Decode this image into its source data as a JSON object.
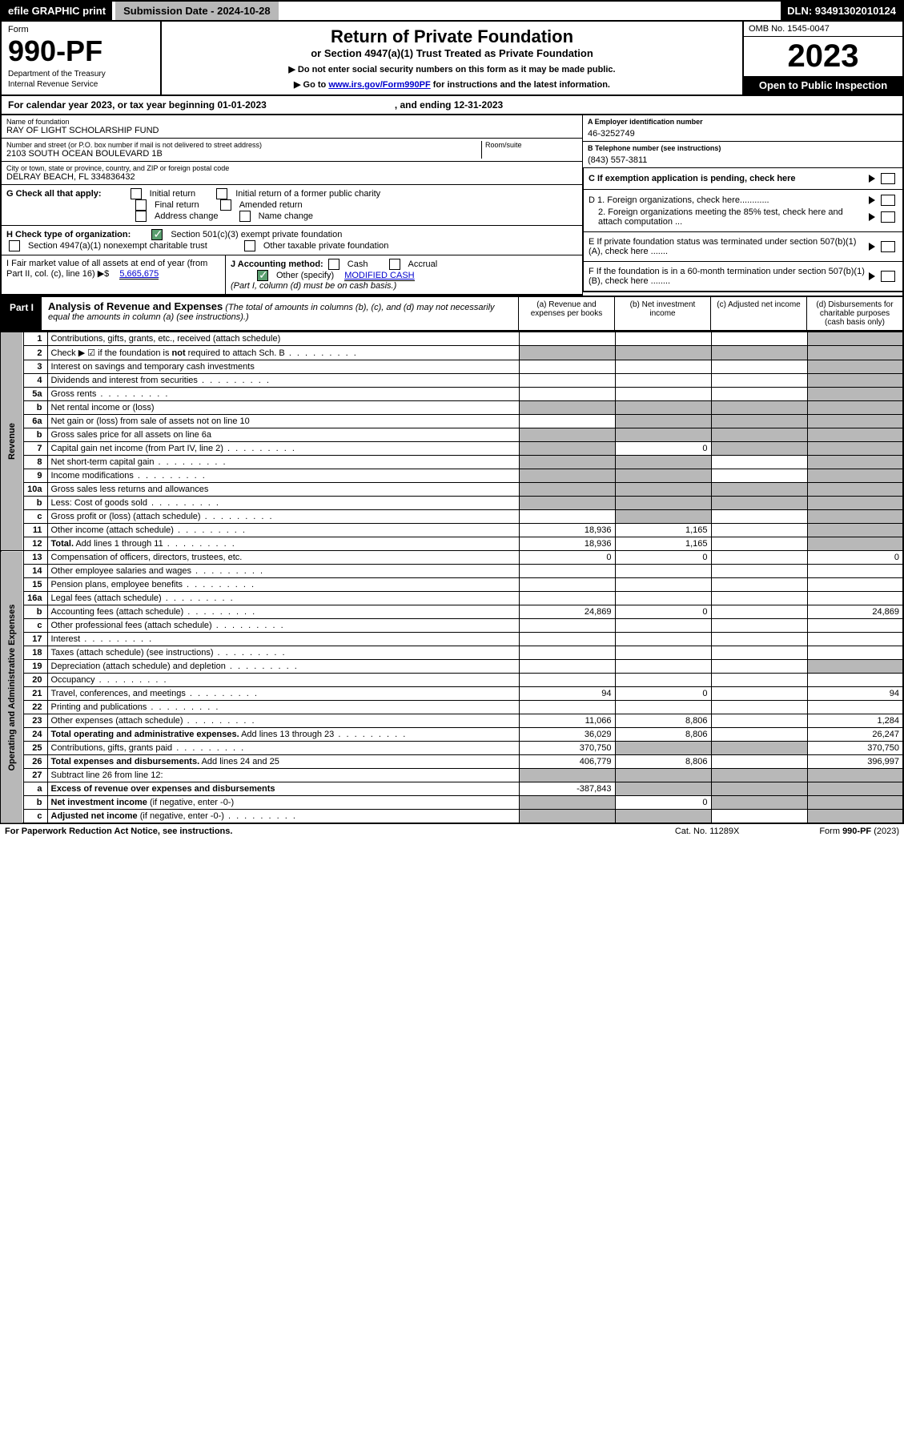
{
  "topbar": {
    "efile": "efile GRAPHIC print",
    "subdate_label": "Submission Date - 2024-10-28",
    "dln": "DLN: 93491302010124"
  },
  "header": {
    "form_label": "Form",
    "form_number": "990-PF",
    "dept": "Department of the Treasury",
    "irs": "Internal Revenue Service",
    "title": "Return of Private Foundation",
    "subtitle": "or Section 4947(a)(1) Trust Treated as Private Foundation",
    "note1": "▶ Do not enter social security numbers on this form as it may be made public.",
    "note2_pre": "▶ Go to ",
    "note2_link": "www.irs.gov/Form990PF",
    "note2_post": " for instructions and the latest information.",
    "omb": "OMB No. 1545-0047",
    "year": "2023",
    "open": "Open to Public Inspection"
  },
  "calrow": {
    "pre": "For calendar year 2023, or tax year beginning 01-01-2023",
    "mid": ", and ending 12-31-2023"
  },
  "info": {
    "name_label": "Name of foundation",
    "name": "RAY OF LIGHT SCHOLARSHIP FUND",
    "addr_label": "Number and street (or P.O. box number if mail is not delivered to street address)",
    "addr": "2103 SOUTH OCEAN BOULEVARD 1B",
    "room_label": "Room/suite",
    "city_label": "City or town, state or province, country, and ZIP or foreign postal code",
    "city": "DELRAY BEACH, FL  334836432",
    "a_label": "A Employer identification number",
    "a_val": "46-3252749",
    "b_label": "B Telephone number (see instructions)",
    "b_val": "(843) 557-3811",
    "c_label": "C If exemption application is pending, check here",
    "d1": "D 1. Foreign organizations, check here............",
    "d2": "2. Foreign organizations meeting the 85% test, check here and attach computation ...",
    "e": "E  If private foundation status was terminated under section 507(b)(1)(A), check here .......",
    "f": "F  If the foundation is in a 60-month termination under section 507(b)(1)(B), check here ........"
  },
  "g": {
    "label": "G Check all that apply:",
    "opts": [
      "Initial return",
      "Initial return of a former public charity",
      "Final return",
      "Amended return",
      "Address change",
      "Name change"
    ]
  },
  "h": {
    "label": "H Check type of organization:",
    "opt1": "Section 501(c)(3) exempt private foundation",
    "opt2": "Section 4947(a)(1) nonexempt charitable trust",
    "opt3": "Other taxable private foundation"
  },
  "i": {
    "label": "I Fair market value of all assets at end of year (from Part II, col. (c), line 16) ▶$ ",
    "val": "5,665,675"
  },
  "j": {
    "label": "J Accounting method:",
    "cash": "Cash",
    "accrual": "Accrual",
    "other": "Other (specify)",
    "other_val": "MODIFIED CASH",
    "note": "(Part I, column (d) must be on cash basis.)"
  },
  "part1": {
    "label": "Part I",
    "title": "Analysis of Revenue and Expenses",
    "desc": "(The total of amounts in columns (b), (c), and (d) may not necessarily equal the amounts in column (a) (see instructions).)",
    "cols": {
      "a": "(a)    Revenue and expenses per books",
      "b": "(b)    Net investment income",
      "c": "(c)    Adjusted net income",
      "d": "(d)    Disbursements for charitable purposes (cash basis only)"
    }
  },
  "sides": {
    "revenue": "Revenue",
    "expenses": "Operating and Administrative Expenses"
  },
  "rows": [
    {
      "n": "1",
      "desc": "Contributions, gifts, grants, etc., received (attach schedule)",
      "a": "",
      "b": "",
      "c": "",
      "d": "",
      "dshade": true
    },
    {
      "n": "2",
      "desc": "Check ▶ ☑ if the foundation is <b>not</b> required to attach Sch. B",
      "dots": true,
      "allshade": true
    },
    {
      "n": "3",
      "desc": "Interest on savings and temporary cash investments",
      "a": "",
      "b": "",
      "c": "",
      "d": "",
      "dshade": true
    },
    {
      "n": "4",
      "desc": "Dividends and interest from securities",
      "dots": true,
      "a": "",
      "b": "",
      "c": "",
      "d": "",
      "dshade": true
    },
    {
      "n": "5a",
      "desc": "Gross rents",
      "dots": true,
      "a": "",
      "b": "",
      "c": "",
      "d": "",
      "dshade": true
    },
    {
      "n": "b",
      "desc": "Net rental income or (loss)",
      "inline": true,
      "allshade": true
    },
    {
      "n": "6a",
      "desc": "Net gain or (loss) from sale of assets not on line 10",
      "a": "",
      "bshade": true,
      "cshade": true,
      "dshade": true
    },
    {
      "n": "b",
      "desc": "Gross sales price for all assets on line 6a",
      "inline": true,
      "allshade": true
    },
    {
      "n": "7",
      "desc": "Capital gain net income (from Part IV, line 2)",
      "dots": true,
      "ashade": true,
      "b": "0",
      "cshade": true,
      "dshade": true
    },
    {
      "n": "8",
      "desc": "Net short-term capital gain",
      "dots": true,
      "ashade": true,
      "bshade": true,
      "c": "",
      "dshade": true
    },
    {
      "n": "9",
      "desc": "Income modifications",
      "dots": true,
      "ashade": true,
      "bshade": true,
      "c": "",
      "dshade": true
    },
    {
      "n": "10a",
      "desc": "Gross sales less returns and allowances",
      "inline": true,
      "allshade": true
    },
    {
      "n": "b",
      "desc": "Less: Cost of goods sold",
      "dots": true,
      "inline": true,
      "allshade": true
    },
    {
      "n": "c",
      "desc": "Gross profit or (loss) (attach schedule)",
      "dots": true,
      "a": "",
      "bshade": true,
      "c": "",
      "dshade": true
    },
    {
      "n": "11",
      "desc": "Other income (attach schedule)",
      "dots": true,
      "a": "18,936",
      "b": "1,165",
      "c": "",
      "dshade": true
    },
    {
      "n": "12",
      "desc": "<b>Total.</b> Add lines 1 through 11",
      "dots": true,
      "a": "18,936",
      "b": "1,165",
      "c": "",
      "dshade": true
    }
  ],
  "exprows": [
    {
      "n": "13",
      "desc": "Compensation of officers, directors, trustees, etc.",
      "a": "0",
      "b": "0",
      "c": "",
      "d": "0"
    },
    {
      "n": "14",
      "desc": "Other employee salaries and wages",
      "dots": true,
      "a": "",
      "b": "",
      "c": "",
      "d": ""
    },
    {
      "n": "15",
      "desc": "Pension plans, employee benefits",
      "dots": true,
      "a": "",
      "b": "",
      "c": "",
      "d": ""
    },
    {
      "n": "16a",
      "desc": "Legal fees (attach schedule)",
      "dots": true,
      "a": "",
      "b": "",
      "c": "",
      "d": ""
    },
    {
      "n": "b",
      "desc": "Accounting fees (attach schedule)",
      "dots": true,
      "a": "24,869",
      "b": "0",
      "c": "",
      "d": "24,869"
    },
    {
      "n": "c",
      "desc": "Other professional fees (attach schedule)",
      "dots": true,
      "a": "",
      "b": "",
      "c": "",
      "d": ""
    },
    {
      "n": "17",
      "desc": "Interest",
      "dots": true,
      "a": "",
      "b": "",
      "c": "",
      "d": ""
    },
    {
      "n": "18",
      "desc": "Taxes (attach schedule) (see instructions)",
      "dots": true,
      "a": "",
      "b": "",
      "c": "",
      "d": ""
    },
    {
      "n": "19",
      "desc": "Depreciation (attach schedule) and depletion",
      "dots": true,
      "a": "",
      "b": "",
      "c": "",
      "dshade": true
    },
    {
      "n": "20",
      "desc": "Occupancy",
      "dots": true,
      "a": "",
      "b": "",
      "c": "",
      "d": ""
    },
    {
      "n": "21",
      "desc": "Travel, conferences, and meetings",
      "dots": true,
      "a": "94",
      "b": "0",
      "c": "",
      "d": "94"
    },
    {
      "n": "22",
      "desc": "Printing and publications",
      "dots": true,
      "a": "",
      "b": "",
      "c": "",
      "d": ""
    },
    {
      "n": "23",
      "desc": "Other expenses (attach schedule)",
      "dots": true,
      "a": "11,066",
      "b": "8,806",
      "c": "",
      "d": "1,284"
    },
    {
      "n": "24",
      "desc": "<b>Total operating and administrative expenses.</b> Add lines 13 through 23",
      "dots": true,
      "a": "36,029",
      "b": "8,806",
      "c": "",
      "d": "26,247"
    },
    {
      "n": "25",
      "desc": "Contributions, gifts, grants paid",
      "dots": true,
      "a": "370,750",
      "bshade": true,
      "cshade": true,
      "d": "370,750"
    },
    {
      "n": "26",
      "desc": "<b>Total expenses and disbursements.</b> Add lines 24 and 25",
      "a": "406,779",
      "b": "8,806",
      "c": "",
      "d": "396,997"
    },
    {
      "n": "27",
      "desc": "Subtract line 26 from line 12:",
      "allshade": true
    },
    {
      "n": "a",
      "desc": "<b>Excess of revenue over expenses and disbursements</b>",
      "a": "-387,843",
      "bshade": true,
      "cshade": true,
      "dshade": true
    },
    {
      "n": "b",
      "desc": "<b>Net investment income</b> (if negative, enter -0-)",
      "ashade": true,
      "b": "0",
      "cshade": true,
      "dshade": true
    },
    {
      "n": "c",
      "desc": "<b>Adjusted net income</b> (if negative, enter -0-)",
      "dots": true,
      "ashade": true,
      "bshade": true,
      "c": "",
      "dshade": true
    }
  ],
  "footer": {
    "left": "For Paperwork Reduction Act Notice, see instructions.",
    "mid": "Cat. No. 11289X",
    "right": "Form 990-PF (2023)"
  }
}
